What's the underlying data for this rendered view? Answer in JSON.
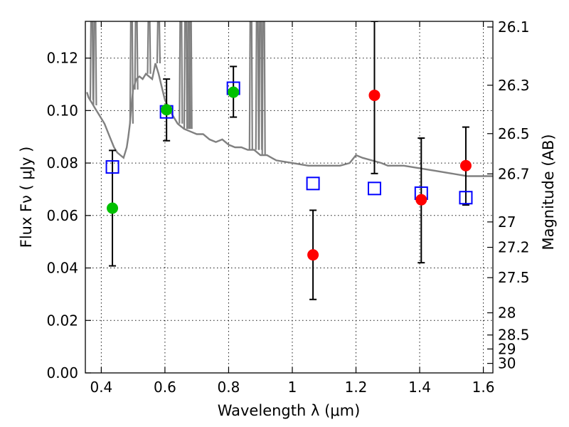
{
  "chart_data": {
    "type": "scatter",
    "xlabel": "Wavelength  λ (μm)",
    "ylabel": "Flux  Fν  ( μJy )",
    "right_ylabel": "Magnitude (AB)",
    "xlim": [
      0.35,
      1.63
    ],
    "ylim": [
      0.0,
      0.134
    ],
    "grid": true,
    "legend": "none",
    "x_ticks": [
      {
        "value": 0.4,
        "label": "0.4"
      },
      {
        "value": 0.6,
        "label": "0.6"
      },
      {
        "value": 0.8,
        "label": "0.8"
      },
      {
        "value": 1.0,
        "label": "1"
      },
      {
        "value": 1.2,
        "label": "1.2"
      },
      {
        "value": 1.4,
        "label": "1.4"
      },
      {
        "value": 1.6,
        "label": "1.6"
      }
    ],
    "y_ticks": [
      {
        "value": 0.0,
        "label": "0.00"
      },
      {
        "value": 0.02,
        "label": "0.02"
      },
      {
        "value": 0.04,
        "label": "0.04"
      },
      {
        "value": 0.06,
        "label": "0.06"
      },
      {
        "value": 0.08,
        "label": "0.08"
      },
      {
        "value": 0.1,
        "label": "0.10"
      },
      {
        "value": 0.12,
        "label": "0.12"
      }
    ],
    "right_ticks": [
      {
        "mag": 26.1,
        "label": "26.1"
      },
      {
        "mag": 26.3,
        "label": "26.3"
      },
      {
        "mag": 26.5,
        "label": "26.5"
      },
      {
        "mag": 26.7,
        "label": "26.7"
      },
      {
        "mag": 27.0,
        "label": "27"
      },
      {
        "mag": 27.2,
        "label": "27.2"
      },
      {
        "mag": 27.5,
        "label": "27.5"
      },
      {
        "mag": 28.0,
        "label": "28"
      },
      {
        "mag": 28.5,
        "label": "28.5"
      },
      {
        "mag": 29.0,
        "label": "29"
      },
      {
        "mag": 30.0,
        "label": "30"
      }
    ],
    "colors": {
      "model": "#808080",
      "model_points": "#0000ff",
      "green_points": "#00c000",
      "red_points": "#ff0000",
      "error_bars": "#000000"
    },
    "model_spectrum": {
      "x": [
        0.355,
        0.36,
        0.365,
        0.37,
        0.375,
        0.38,
        0.39,
        0.4,
        0.41,
        0.42,
        0.43,
        0.44,
        0.45,
        0.46,
        0.47,
        0.475,
        0.48,
        0.485,
        0.49,
        0.495,
        0.5,
        0.51,
        0.52,
        0.53,
        0.54,
        0.55,
        0.56,
        0.57,
        0.58,
        0.59,
        0.6,
        0.62,
        0.64,
        0.66,
        0.68,
        0.7,
        0.72,
        0.74,
        0.76,
        0.78,
        0.8,
        0.82,
        0.84,
        0.86,
        0.88,
        0.9,
        0.92,
        0.95,
        1.0,
        1.05,
        1.1,
        1.15,
        1.18,
        1.2,
        1.22,
        1.25,
        1.28,
        1.3,
        1.35,
        1.4,
        1.45,
        1.5,
        1.55,
        1.6,
        1.63
      ],
      "y": [
        0.107,
        0.105,
        0.104,
        0.103,
        0.102,
        0.101,
        0.099,
        0.097,
        0.095,
        0.092,
        0.089,
        0.086,
        0.084,
        0.083,
        0.082,
        0.084,
        0.086,
        0.09,
        0.095,
        0.102,
        0.108,
        0.112,
        0.113,
        0.112,
        0.114,
        0.113,
        0.112,
        0.118,
        0.114,
        0.109,
        0.104,
        0.099,
        0.095,
        0.093,
        0.092,
        0.091,
        0.091,
        0.089,
        0.088,
        0.089,
        0.087,
        0.086,
        0.086,
        0.085,
        0.085,
        0.083,
        0.083,
        0.081,
        0.08,
        0.079,
        0.079,
        0.079,
        0.08,
        0.083,
        0.082,
        0.081,
        0.08,
        0.079,
        0.079,
        0.078,
        0.077,
        0.076,
        0.075,
        0.075,
        0.075
      ]
    },
    "model_spikes": [
      0.37,
      0.38,
      0.495,
      0.51,
      0.55,
      0.58,
      0.65,
      0.665,
      0.675,
      0.68,
      0.87,
      0.89,
      0.9,
      0.91
    ],
    "model_points": {
      "x": [
        0.435,
        0.605,
        0.815,
        1.065,
        1.258,
        1.405,
        1.545
      ],
      "y": [
        0.0785,
        0.0995,
        0.1085,
        0.0722,
        0.0703,
        0.0685,
        0.0668
      ]
    },
    "series": [
      {
        "color": "green",
        "x": [
          0.435,
          0.605,
          0.815
        ],
        "y": [
          0.0628,
          0.1003,
          0.107
        ],
        "err_low": [
          0.0408,
          0.0885,
          0.0975
        ],
        "err_high": [
          0.0848,
          0.112,
          0.1168
        ]
      },
      {
        "color": "red",
        "x": [
          1.065,
          1.258,
          1.405,
          1.545
        ],
        "y": [
          0.045,
          0.1058,
          0.066,
          0.079
        ],
        "err_low": [
          0.028,
          0.076,
          0.042,
          0.064
        ],
        "err_high": [
          0.062,
          0.134,
          0.0895,
          0.0937
        ]
      }
    ]
  }
}
